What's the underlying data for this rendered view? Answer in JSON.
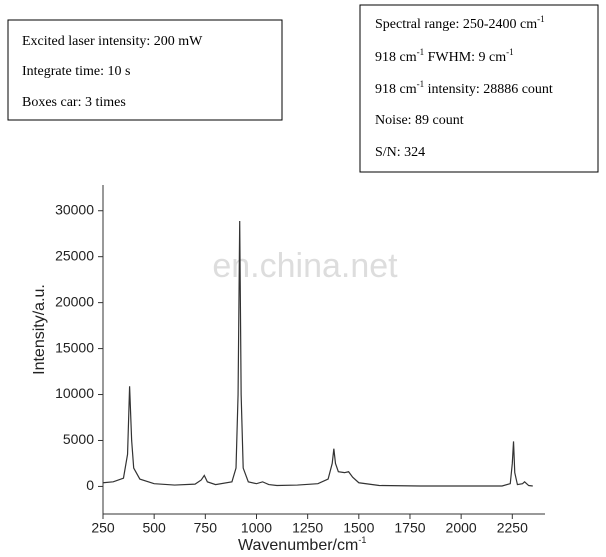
{
  "info_left": [
    [
      "Excited laser intensity: 200 mW"
    ],
    [
      "Integrate time: 10 s"
    ],
    [
      "Boxes car: 3 times"
    ]
  ],
  "info_right": [
    [
      "Spectral range: 250-2400 cm",
      "-1"
    ],
    [
      "918 cm",
      "-1",
      " FWHM: 9 cm",
      "-1"
    ],
    [
      "918 cm",
      "-1",
      " intensity: 28886 count"
    ],
    [
      "Noise: 89 count"
    ],
    [
      "S/N: 324"
    ]
  ],
  "watermark": "en.china.net",
  "chart_data": {
    "type": "line",
    "xlabel": [
      "Wavenumber/cm",
      "-1"
    ],
    "ylabel": "Intensity/a.u.",
    "x": [
      250,
      300,
      350,
      370,
      380,
      390,
      400,
      430,
      500,
      600,
      700,
      730,
      745,
      760,
      800,
      880,
      900,
      910,
      918,
      925,
      935,
      960,
      1000,
      1030,
      1040,
      1060,
      1100,
      1200,
      1300,
      1350,
      1370,
      1378,
      1386,
      1400,
      1430,
      1450,
      1470,
      1500,
      1600,
      1800,
      2000,
      2200,
      2240,
      2250,
      2256,
      2262,
      2275,
      2300,
      2310,
      2330,
      2350
    ],
    "values": [
      400,
      500,
      900,
      3500,
      10900,
      5000,
      2000,
      800,
      300,
      150,
      250,
      700,
      1200,
      500,
      200,
      500,
      2000,
      10000,
      28886,
      10000,
      2000,
      500,
      300,
      500,
      400,
      200,
      100,
      150,
      300,
      800,
      2500,
      4100,
      2500,
      1600,
      1500,
      1600,
      1000,
      400,
      100,
      50,
      50,
      50,
      300,
      2500,
      4900,
      1500,
      200,
      300,
      500,
      100,
      50
    ],
    "color": "#333333",
    "xlim": [
      250,
      2400
    ],
    "ylim": [
      -3000,
      32800
    ],
    "xticks": [
      250,
      500,
      750,
      1000,
      1250,
      1500,
      1750,
      2000,
      2250
    ],
    "yticks": [
      0,
      5000,
      10000,
      15000,
      20000,
      25000,
      30000
    ]
  }
}
